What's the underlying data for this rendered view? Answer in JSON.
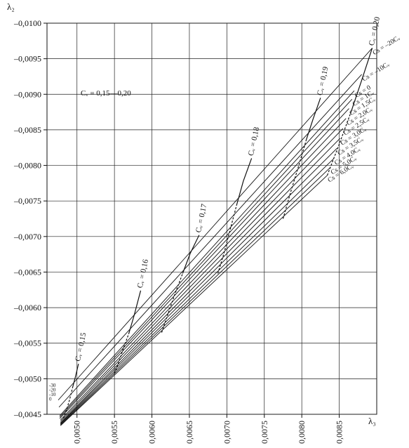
{
  "chart_data": {
    "type": "line",
    "title": "",
    "xlabel": "λ₃",
    "ylabel": "λ₂",
    "xlim": [
      0.0046,
      0.009
    ],
    "ylim": [
      -0.0045,
      -0.01
    ],
    "grid": true,
    "x_ticks": [
      "0,0050",
      "0,0055",
      "0,0060",
      "0,0065",
      "0,0070",
      "0,0075",
      "0,0080",
      "0,0085"
    ],
    "y_ticks": [
      "–0,0100",
      "–0,0095",
      "–0,0090",
      "–0,0085",
      "–0,0080",
      "–0,0075",
      "–0,0070",
      "–0,0065",
      "–0,0060",
      "–0,0055",
      "–0,0050",
      "–0,0045"
    ],
    "annotation": "Cᵥ = 0,15—0,20",
    "left_labels": [
      "-30",
      "-20",
      "-10",
      "0"
    ],
    "cs_series": [
      {
        "name": "Cs = –20Cᵥ",
        "x": [
          0.00475,
          0.00894
        ],
        "y": [
          -0.0047,
          -0.00965
        ]
      },
      {
        "name": "Cs = –10Cᵥ",
        "x": [
          0.00476,
          0.0088
        ],
        "y": [
          -0.0046,
          -0.00928
        ]
      },
      {
        "name": "Cs = 0",
        "x": [
          0.00477,
          0.0087
        ],
        "y": [
          -0.00448,
          -0.00905
        ]
      },
      {
        "name": "Cs = 1Cᵥ",
        "x": [
          0.00477,
          0.00867
        ],
        "y": [
          -0.00446,
          -0.00893
        ]
      },
      {
        "name": "Cs = 1,5Cᵥ",
        "x": [
          0.00477,
          0.00863
        ],
        "y": [
          -0.00444,
          -0.0088
        ]
      },
      {
        "name": "Cs = 2,0Cᵥ",
        "x": [
          0.00478,
          0.00859
        ],
        "y": [
          -0.00442,
          -0.00866
        ]
      },
      {
        "name": "Cs = 2,5Cᵥ",
        "x": [
          0.00478,
          0.00855
        ],
        "y": [
          -0.0044,
          -0.00852
        ]
      },
      {
        "name": "Cs = 3,0Cᵥ",
        "x": [
          0.00478,
          0.00851
        ],
        "y": [
          -0.00438,
          -0.00838
        ]
      },
      {
        "name": "Cs = 3,5Cᵥ",
        "x": [
          0.00478,
          0.00847
        ],
        "y": [
          -0.00437,
          -0.00824
        ]
      },
      {
        "name": "Cs = 4,0Cᵥ",
        "x": [
          0.00478,
          0.00843
        ],
        "y": [
          -0.00436,
          -0.0081
        ]
      },
      {
        "name": "Cs = 5,0Cᵥ",
        "x": [
          0.00478,
          0.00838
        ],
        "y": [
          -0.00435,
          -0.00797
        ]
      },
      {
        "name": "Cs = 6,0Cᵥ",
        "x": [
          0.00478,
          0.00834
        ],
        "y": [
          -0.00434,
          -0.00786
        ]
      }
    ],
    "cv_series": [
      {
        "name": "Cᵥ = 0,15",
        "x": [
          0.00482,
          0.00486,
          0.0049,
          0.00494,
          0.00498,
          0.00502
        ],
        "y": [
          -0.00444,
          -0.00456,
          -0.0047,
          -0.00487,
          -0.00503,
          -0.00521
        ]
      },
      {
        "name": "Cᵥ = 0,16",
        "x": [
          0.0055,
          0.00556,
          0.00562,
          0.00569,
          0.00576,
          0.00585
        ],
        "y": [
          -0.00507,
          -0.00524,
          -0.00543,
          -0.00563,
          -0.00588,
          -0.00624
        ]
      },
      {
        "name": "Cᵥ = 0,17",
        "x": [
          0.00613,
          0.00622,
          0.00631,
          0.00641,
          0.00651,
          0.00663
        ],
        "y": [
          -0.00565,
          -0.00593,
          -0.0062,
          -0.00648,
          -0.00676,
          -0.00702
        ]
      },
      {
        "name": "Cᵥ = 0,18",
        "x": [
          0.00688,
          0.00696,
          0.00704,
          0.00713,
          0.00722,
          0.00733
        ],
        "y": [
          -0.00648,
          -0.00676,
          -0.00708,
          -0.00744,
          -0.00778,
          -0.0081
        ]
      },
      {
        "name": "Cᵥ = 0,19",
        "x": [
          0.00775,
          0.00785,
          0.00796,
          0.00806,
          0.00815,
          0.00825
        ],
        "y": [
          -0.00725,
          -0.00762,
          -0.008,
          -0.00836,
          -0.00865,
          -0.00895
        ]
      },
      {
        "name": "Cᵥ = 0,20",
        "x": [
          0.00834,
          0.0085,
          0.00866,
          0.0088,
          0.00894
        ],
        "y": [
          -0.00786,
          -0.0083,
          -0.00876,
          -0.0092,
          -0.00965
        ]
      }
    ]
  }
}
